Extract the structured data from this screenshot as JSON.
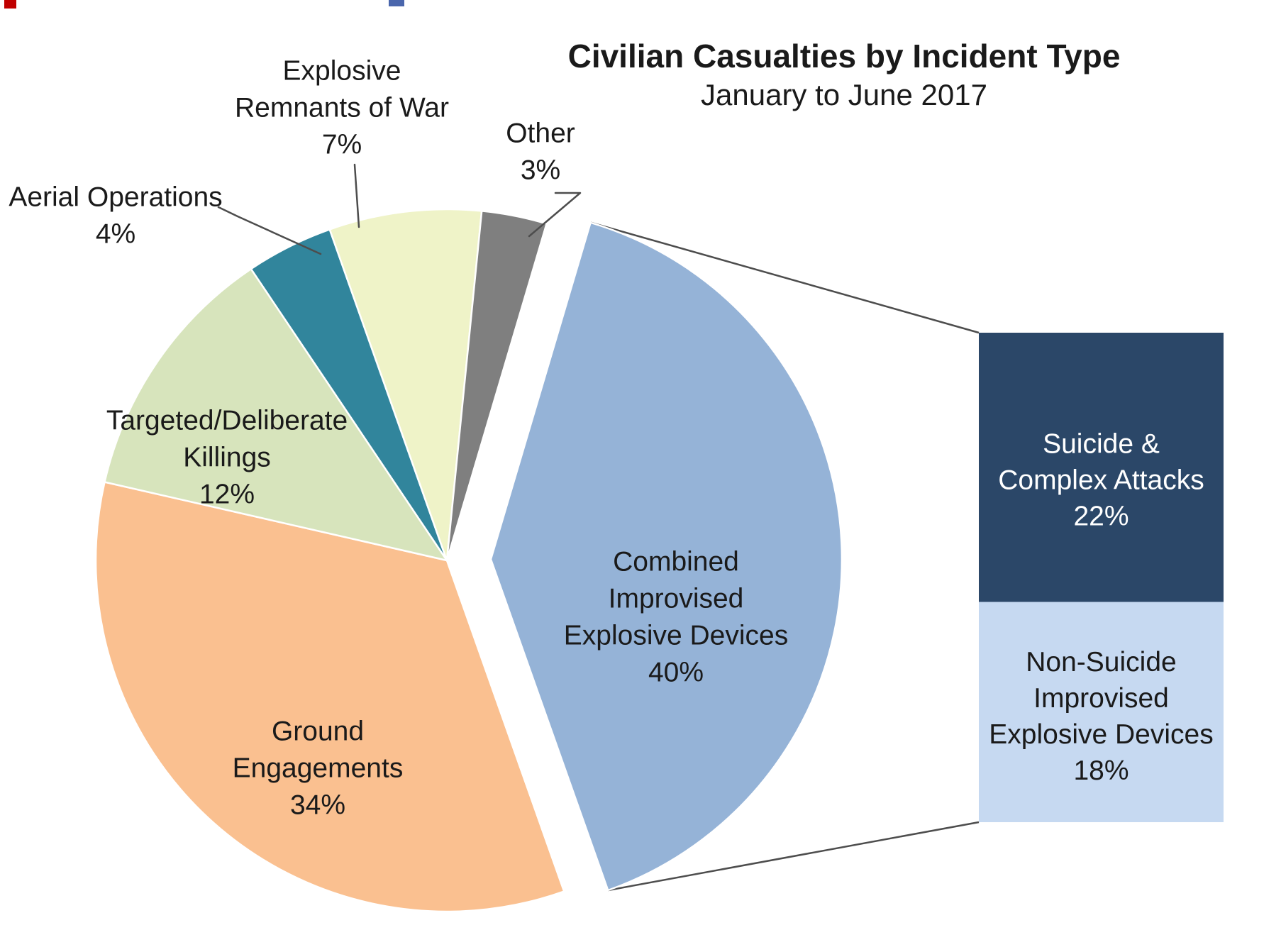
{
  "chart_data": {
    "type": "pie",
    "variant": "bar-of-pie-exploded",
    "title": "Civilian Casualties by Incident Type",
    "subtitle": "January to June 2017",
    "unit": "percent",
    "direction": "clockwise",
    "legend": "none",
    "slices": [
      {
        "id": "cied",
        "label": "Combined Improvised Explosive Devices",
        "label_lines": [
          "Combined",
          "Improvised",
          "Explosive Devices"
        ],
        "value": 40,
        "value_label": "40%",
        "color": "#95b3d7",
        "exploded": true,
        "has_breakdown": true
      },
      {
        "id": "ground",
        "label": "Ground Engagements",
        "label_lines": [
          "Ground",
          "Engagements"
        ],
        "value": 34,
        "value_label": "34%",
        "color": "#fac090",
        "exploded": false
      },
      {
        "id": "targeted",
        "label": "Targeted/Deliberate Killings",
        "label_lines": [
          "Targeted/Deliberate",
          "Killings"
        ],
        "value": 12,
        "value_label": "12%",
        "color": "#d7e4bc",
        "exploded": false
      },
      {
        "id": "aerial",
        "label": "Aerial Operations",
        "label_lines": [
          "Aerial Operations"
        ],
        "value": 4,
        "value_label": "4%",
        "color": "#31859c",
        "exploded": false
      },
      {
        "id": "erw",
        "label": "Explosive Remnants of War",
        "label_lines": [
          "Explosive",
          "Remnants of War"
        ],
        "value": 7,
        "value_label": "7%",
        "color": "#eff3c8",
        "exploded": false
      },
      {
        "id": "other",
        "label": "Other",
        "label_lines": [
          "Other"
        ],
        "value": 3,
        "value_label": "3%",
        "color": "#7f7f7f",
        "exploded": false
      }
    ],
    "breakdown_of": "Combined Improvised Explosive Devices",
    "breakdown_bars": [
      {
        "id": "suicide",
        "label": "Suicide & Complex Attacks",
        "label_lines": [
          "Suicide &",
          "Complex Attacks"
        ],
        "value": 22,
        "value_label": "22%",
        "color": "#2b4768",
        "text_color": "#ffffff"
      },
      {
        "id": "nonsuicide",
        "label": "Non-Suicide Improvised Explosive Devices",
        "label_lines": [
          "Non-Suicide",
          "Improvised",
          "Explosive Devices"
        ],
        "value": 18,
        "value_label": "18%",
        "color": "#c6d9f1",
        "text_color": "#1a1a1a"
      }
    ],
    "colors": {
      "background": "#ffffff",
      "label_text": "#1a1a1a",
      "leader_line": "#4d4d4d",
      "connector_line": "#4d4d4d"
    },
    "artifact_marks": [
      {
        "id": "top-left-red",
        "color": "#c00000"
      },
      {
        "id": "top-center-blue",
        "color": "#4a66ac"
      }
    ]
  }
}
